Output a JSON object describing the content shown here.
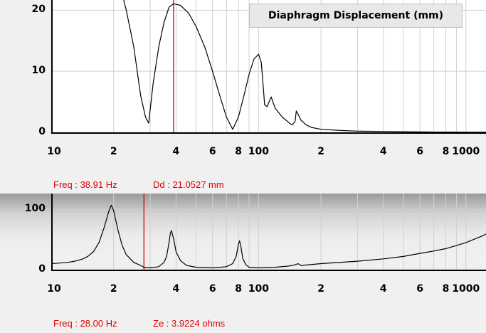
{
  "charts": {
    "displacement": {
      "title": "Diaphragm Displacement (mm)",
      "readout": {
        "freq_label": "Freq : 38.91 Hz",
        "value_label": "Dd : 21.0527 mm"
      }
    },
    "impedance": {
      "readout": {
        "freq_label": "Freq : 28.00 Hz",
        "value_label": "Ze : 3.9224 ohms"
      }
    }
  },
  "colors": {
    "curve": "#000000",
    "cursor": "#e00000",
    "grid": "#d0d0d0",
    "axis": "#000000"
  },
  "chart_data": [
    {
      "type": "line",
      "title": "Diaphragm Displacement (mm)",
      "x_scale": "log",
      "xlim": [
        10,
        2000
      ],
      "ylim": [
        0,
        24
      ],
      "x_tick_labels": [
        "10",
        "2",
        "4",
        "6",
        "8",
        "100",
        "2",
        "4",
        "6",
        "8",
        "1000"
      ],
      "y_tick_labels": [
        "20",
        "10",
        "0"
      ],
      "y_ticks": [
        20,
        10,
        0
      ],
      "cursor_x": 38.91,
      "series": [
        {
          "x": [
            20,
            21.5,
            23,
            25,
            27,
            28.5,
            29.5,
            31,
            33,
            35,
            37,
            38.91,
            42,
            46,
            50,
            55,
            60,
            65,
            70,
            75,
            80,
            85,
            90,
            95,
            100,
            103,
            105,
            107,
            110,
            115,
            120,
            130,
            140,
            145,
            150,
            152,
            155,
            160,
            170,
            180,
            200,
            250,
            300,
            400,
            500,
            700,
            1000,
            1500,
            2000
          ],
          "y": [
            28,
            24,
            20,
            14,
            6,
            2.5,
            1.5,
            8,
            14,
            18,
            20.5,
            21.05,
            20.8,
            19.5,
            17.3,
            14,
            10,
            6,
            2.5,
            0.5,
            2.5,
            6,
            9.5,
            12,
            12.8,
            11.5,
            8,
            4.5,
            4.2,
            5.8,
            4,
            2.5,
            1.6,
            1.2,
            1.8,
            3.5,
            3.0,
            2.0,
            1.2,
            0.8,
            0.5,
            0.3,
            0.2,
            0.15,
            0.1,
            0.05,
            0.03,
            0.02,
            0.01
          ]
        }
      ]
    },
    {
      "type": "line",
      "title": "",
      "x_scale": "log",
      "xlim": [
        10,
        2000
      ],
      "ylim": [
        0,
        150
      ],
      "x_tick_labels": [
        "10",
        "2",
        "4",
        "6",
        "8",
        "100",
        "2",
        "4",
        "6",
        "8",
        "1000"
      ],
      "y_tick_labels": [
        "100",
        "0"
      ],
      "y_ticks": [
        100,
        0
      ],
      "cursor_x": 28.0,
      "series": [
        {
          "x": [
            10,
            11,
            12,
            13,
            14,
            15,
            16,
            17,
            18,
            19,
            19.5,
            20,
            21,
            22,
            23,
            25,
            27,
            28,
            30,
            33,
            35,
            36,
            37,
            37.5,
            38,
            39,
            40,
            42,
            45,
            50,
            60,
            70,
            75,
            78,
            80,
            81,
            82,
            84,
            87,
            90,
            100,
            120,
            140,
            150,
            155,
            160,
            200,
            300,
            400,
            500,
            600,
            700,
            800,
            900,
            1000,
            1200,
            1400,
            1600,
            1800,
            2000
          ],
          "y": [
            10,
            11,
            12,
            14,
            17,
            22,
            30,
            45,
            70,
            98,
            107,
            98,
            65,
            40,
            25,
            12,
            7,
            4,
            3,
            5,
            12,
            22,
            45,
            60,
            65,
            50,
            30,
            15,
            7,
            4,
            3,
            5,
            10,
            22,
            42,
            48,
            40,
            18,
            8,
            4,
            3,
            4,
            6,
            8,
            10,
            7,
            10,
            14,
            18,
            22,
            27,
            31,
            35,
            40,
            45,
            56,
            68,
            80,
            92,
            104
          ]
        }
      ]
    }
  ]
}
